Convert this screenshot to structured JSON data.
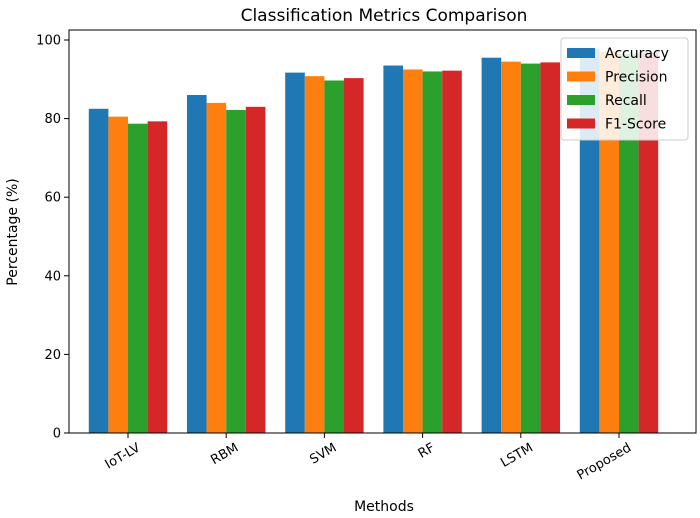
{
  "chart_data": {
    "type": "bar",
    "title": "Classification Metrics Comparison",
    "xlabel": "Methods",
    "ylabel": "Percentage (%)",
    "categories": [
      "IoT-LV",
      "RBM",
      "SVM",
      "RF",
      "LSTM",
      "Proposed"
    ],
    "ylim": [
      0,
      100
    ],
    "yticks": [
      "0",
      "20",
      "40",
      "60",
      "80",
      "100"
    ],
    "legend_position": "top-right",
    "grid": false,
    "series": [
      {
        "name": "Accuracy",
        "color": "#1f77b4",
        "values": [
          82.5,
          86.0,
          91.7,
          93.5,
          95.5,
          97.8
        ]
      },
      {
        "name": "Precision",
        "color": "#ff7f0e",
        "values": [
          80.5,
          84.0,
          90.8,
          92.5,
          94.5,
          97.0
        ]
      },
      {
        "name": "Recall",
        "color": "#2ca02c",
        "values": [
          78.7,
          82.2,
          89.7,
          92.0,
          94.0,
          96.5
        ]
      },
      {
        "name": "F1-Score",
        "color": "#d62728",
        "values": [
          79.3,
          83.0,
          90.3,
          92.2,
          94.3,
          96.8
        ]
      }
    ]
  }
}
